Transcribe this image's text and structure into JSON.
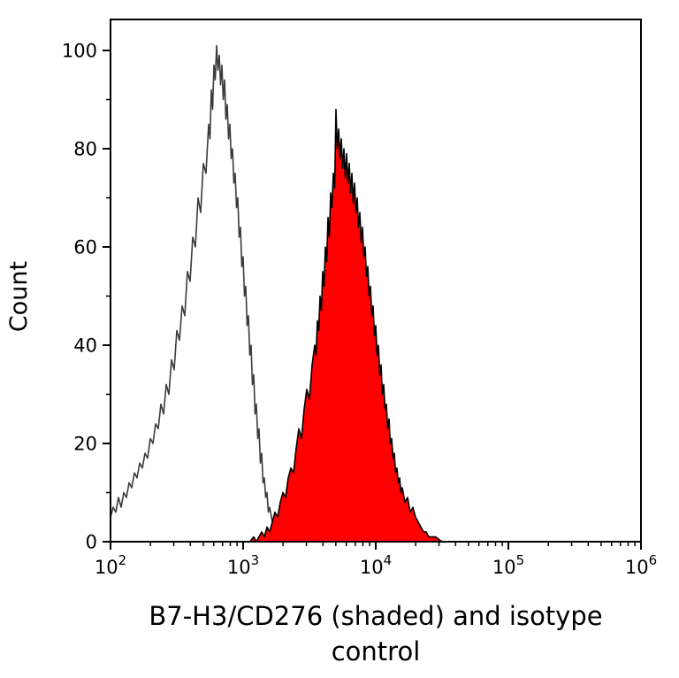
{
  "page": {
    "background": "#ffffff"
  },
  "chart_data": {
    "type": "area",
    "subtype": "flow-cytometry-histogram-overlay",
    "title": "B7-H3/CD276 (shaded) and isotype control",
    "xlabel": "B7-H3/CD276 (shaded) and isotype control",
    "ylabel": "Count",
    "xscale": "log",
    "xlim_exponents": [
      2,
      6
    ],
    "ylim": [
      0,
      105
    ],
    "x_tick_base": "10",
    "x_tick_exponents": [
      2,
      3,
      4,
      5,
      6
    ],
    "y_ticks": [
      0,
      20,
      40,
      60,
      80,
      100
    ],
    "y_minor_ticks": [
      10,
      30,
      50,
      70,
      90
    ],
    "grid": false,
    "legend": "none",
    "colors": {
      "shaded_fill": "#ff0000",
      "shaded_stroke": "#000000",
      "open_stroke": "#3c3c3c",
      "axis": "#000000"
    },
    "series": [
      {
        "name": "isotype control",
        "style": "open",
        "stroke": "#3c3c3c",
        "fill": "none",
        "points": [
          [
            2.0,
            5
          ],
          [
            2.02,
            7
          ],
          [
            2.04,
            6
          ],
          [
            2.06,
            9
          ],
          [
            2.08,
            7
          ],
          [
            2.1,
            10
          ],
          [
            2.12,
            9
          ],
          [
            2.14,
            12
          ],
          [
            2.16,
            11
          ],
          [
            2.18,
            14
          ],
          [
            2.2,
            13
          ],
          [
            2.22,
            16
          ],
          [
            2.24,
            15
          ],
          [
            2.26,
            18
          ],
          [
            2.28,
            17
          ],
          [
            2.3,
            21
          ],
          [
            2.32,
            20
          ],
          [
            2.34,
            24
          ],
          [
            2.36,
            23
          ],
          [
            2.38,
            28
          ],
          [
            2.4,
            26
          ],
          [
            2.42,
            32
          ],
          [
            2.44,
            30
          ],
          [
            2.46,
            37
          ],
          [
            2.48,
            35
          ],
          [
            2.5,
            43
          ],
          [
            2.52,
            41
          ],
          [
            2.54,
            48
          ],
          [
            2.56,
            46
          ],
          [
            2.58,
            55
          ],
          [
            2.6,
            53
          ],
          [
            2.62,
            62
          ],
          [
            2.64,
            60
          ],
          [
            2.66,
            70
          ],
          [
            2.68,
            67
          ],
          [
            2.7,
            77
          ],
          [
            2.72,
            75
          ],
          [
            2.74,
            85
          ],
          [
            2.75,
            82
          ],
          [
            2.76,
            92
          ],
          [
            2.77,
            88
          ],
          [
            2.78,
            97
          ],
          [
            2.79,
            94
          ],
          [
            2.8,
            101
          ],
          [
            2.81,
            96
          ],
          [
            2.82,
            99
          ],
          [
            2.83,
            93
          ],
          [
            2.84,
            97
          ],
          [
            2.85,
            90
          ],
          [
            2.86,
            94
          ],
          [
            2.87,
            86
          ],
          [
            2.88,
            89
          ],
          [
            2.89,
            82
          ],
          [
            2.9,
            85
          ],
          [
            2.91,
            78
          ],
          [
            2.92,
            80
          ],
          [
            2.93,
            73
          ],
          [
            2.94,
            75
          ],
          [
            2.95,
            68
          ],
          [
            2.96,
            70
          ],
          [
            2.97,
            62
          ],
          [
            2.98,
            64
          ],
          [
            2.99,
            56
          ],
          [
            3.0,
            58
          ],
          [
            3.01,
            50
          ],
          [
            3.02,
            52
          ],
          [
            3.03,
            44
          ],
          [
            3.04,
            46
          ],
          [
            3.05,
            38
          ],
          [
            3.06,
            40
          ],
          [
            3.07,
            32
          ],
          [
            3.08,
            34
          ],
          [
            3.09,
            26
          ],
          [
            3.1,
            28
          ],
          [
            3.11,
            21
          ],
          [
            3.12,
            23
          ],
          [
            3.13,
            16
          ],
          [
            3.14,
            18
          ],
          [
            3.15,
            12
          ],
          [
            3.16,
            13
          ],
          [
            3.17,
            9
          ],
          [
            3.18,
            10
          ],
          [
            3.19,
            6
          ],
          [
            3.2,
            7
          ],
          [
            3.22,
            4
          ],
          [
            3.24,
            5
          ],
          [
            3.26,
            3
          ],
          [
            3.28,
            3
          ],
          [
            3.3,
            2
          ],
          [
            3.35,
            2
          ],
          [
            3.4,
            1
          ],
          [
            3.5,
            1
          ],
          [
            3.6,
            2
          ],
          [
            3.7,
            1
          ],
          [
            3.8,
            1
          ],
          [
            3.9,
            2
          ],
          [
            4.0,
            1
          ],
          [
            4.1,
            1
          ],
          [
            4.2,
            2
          ],
          [
            4.3,
            1
          ],
          [
            4.35,
            1
          ]
        ]
      },
      {
        "name": "B7-H3/CD276 (shaded)",
        "style": "filled",
        "stroke": "#000000",
        "fill": "#ff0000",
        "points": [
          [
            3.05,
            0
          ],
          [
            3.08,
            1
          ],
          [
            3.1,
            0
          ],
          [
            3.12,
            1
          ],
          [
            3.14,
            2
          ],
          [
            3.16,
            1
          ],
          [
            3.18,
            3
          ],
          [
            3.2,
            2
          ],
          [
            3.22,
            4
          ],
          [
            3.24,
            6
          ],
          [
            3.26,
            5
          ],
          [
            3.28,
            8
          ],
          [
            3.3,
            10
          ],
          [
            3.32,
            9
          ],
          [
            3.34,
            13
          ],
          [
            3.36,
            15
          ],
          [
            3.38,
            14
          ],
          [
            3.4,
            19
          ],
          [
            3.42,
            23
          ],
          [
            3.44,
            21
          ],
          [
            3.46,
            27
          ],
          [
            3.48,
            31
          ],
          [
            3.5,
            29
          ],
          [
            3.52,
            36
          ],
          [
            3.54,
            40
          ],
          [
            3.55,
            38
          ],
          [
            3.56,
            45
          ],
          [
            3.57,
            43
          ],
          [
            3.58,
            50
          ],
          [
            3.59,
            47
          ],
          [
            3.6,
            55
          ],
          [
            3.61,
            52
          ],
          [
            3.62,
            60
          ],
          [
            3.63,
            57
          ],
          [
            3.64,
            66
          ],
          [
            3.65,
            62
          ],
          [
            3.66,
            71
          ],
          [
            3.67,
            68
          ],
          [
            3.68,
            75
          ],
          [
            3.69,
            72
          ],
          [
            3.7,
            88
          ],
          [
            3.71,
            80
          ],
          [
            3.72,
            84
          ],
          [
            3.73,
            78
          ],
          [
            3.74,
            82
          ],
          [
            3.75,
            76
          ],
          [
            3.76,
            80
          ],
          [
            3.77,
            74
          ],
          [
            3.78,
            79
          ],
          [
            3.79,
            73
          ],
          [
            3.8,
            77
          ],
          [
            3.81,
            71
          ],
          [
            3.82,
            75
          ],
          [
            3.83,
            69
          ],
          [
            3.84,
            73
          ],
          [
            3.85,
            67
          ],
          [
            3.86,
            70
          ],
          [
            3.87,
            64
          ],
          [
            3.88,
            67
          ],
          [
            3.89,
            61
          ],
          [
            3.9,
            64
          ],
          [
            3.91,
            58
          ],
          [
            3.92,
            60
          ],
          [
            3.93,
            54
          ],
          [
            3.94,
            56
          ],
          [
            3.95,
            50
          ],
          [
            3.96,
            52
          ],
          [
            3.97,
            46
          ],
          [
            3.98,
            48
          ],
          [
            3.99,
            42
          ],
          [
            4.0,
            44
          ],
          [
            4.01,
            38
          ],
          [
            4.02,
            40
          ],
          [
            4.03,
            34
          ],
          [
            4.04,
            36
          ],
          [
            4.05,
            30
          ],
          [
            4.06,
            32
          ],
          [
            4.07,
            27
          ],
          [
            4.08,
            28
          ],
          [
            4.09,
            23
          ],
          [
            4.1,
            25
          ],
          [
            4.11,
            20
          ],
          [
            4.12,
            21
          ],
          [
            4.13,
            17
          ],
          [
            4.14,
            18
          ],
          [
            4.15,
            14
          ],
          [
            4.16,
            15
          ],
          [
            4.17,
            12
          ],
          [
            4.18,
            13
          ],
          [
            4.19,
            10
          ],
          [
            4.2,
            11
          ],
          [
            4.22,
            8
          ],
          [
            4.24,
            9
          ],
          [
            4.26,
            6
          ],
          [
            4.28,
            7
          ],
          [
            4.3,
            5
          ],
          [
            4.32,
            4
          ],
          [
            4.34,
            3
          ],
          [
            4.36,
            2
          ],
          [
            4.38,
            2
          ],
          [
            4.4,
            1
          ],
          [
            4.45,
            1
          ],
          [
            4.5,
            0
          ]
        ]
      }
    ]
  }
}
